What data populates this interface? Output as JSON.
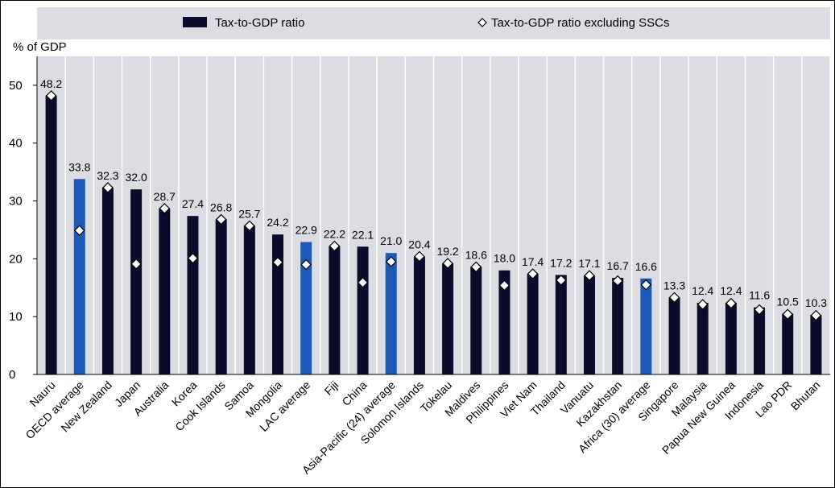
{
  "chart_data": {
    "type": "bar",
    "ylabel": "% of GDP",
    "ylim": [
      0,
      55
    ],
    "yticks": [
      0,
      10,
      20,
      30,
      40,
      50
    ],
    "grid": "vertical",
    "legend_position": "top",
    "categories": [
      "Nauru",
      "OECD average",
      "New Zealand",
      "Japan",
      "Australia",
      "Korea",
      "Cook Islands",
      "Samoa",
      "Mongolia",
      "LAC average",
      "Fiji",
      "China",
      "Asia-Pacific (24) average",
      "Solomon Islands",
      "Tokelau",
      "Maldives",
      "Philippines",
      "Viet Nam",
      "Thailand",
      "Vanuatu",
      "Kazakhstan",
      "Africa (30) average",
      "Singapore",
      "Malaysia",
      "Papua New Guinea",
      "Indonesia",
      "Lao PDR",
      "Bhutan"
    ],
    "series": [
      {
        "name": "Tax-to-GDP ratio",
        "values": [
          48.2,
          33.8,
          32.3,
          32.0,
          28.7,
          27.4,
          26.8,
          25.7,
          24.2,
          22.9,
          22.2,
          22.1,
          21.0,
          20.4,
          19.2,
          18.6,
          18.0,
          17.4,
          17.2,
          17.1,
          16.7,
          16.6,
          13.3,
          12.4,
          12.4,
          11.6,
          10.5,
          10.3
        ],
        "labels": [
          "48.2",
          "33.8",
          "32.3",
          "32.0",
          "28.7",
          "27.4",
          "26.8",
          "25.7",
          "24.2",
          "22.9",
          "22.2",
          "22.1",
          "21.0",
          "20.4",
          "19.2",
          "18.6",
          "18.0",
          "17.4",
          "17.2",
          "17.1",
          "16.7",
          "16.6",
          "13.3",
          "12.4",
          "12.4",
          "11.6",
          "10.5",
          "10.3"
        ],
        "highlight": [
          false,
          true,
          false,
          false,
          false,
          false,
          false,
          false,
          false,
          true,
          false,
          false,
          true,
          false,
          false,
          false,
          false,
          false,
          false,
          false,
          false,
          true,
          false,
          false,
          false,
          false,
          false,
          false
        ]
      },
      {
        "name": "Tax-to-GDP ratio excluding SSCs",
        "values": [
          48.2,
          24.9,
          32.3,
          19.1,
          28.7,
          20.1,
          26.8,
          25.7,
          19.4,
          19.0,
          22.2,
          15.9,
          19.5,
          20.4,
          19.2,
          18.6,
          15.4,
          17.4,
          16.3,
          17.1,
          16.2,
          15.5,
          13.3,
          12.1,
          12.3,
          11.2,
          10.4,
          10.2
        ]
      }
    ],
    "colors": {
      "bar": "#0b0c2b",
      "bar_highlight": "#1b5ab8",
      "diamond_fill": "#ffffff",
      "diamond_stroke": "#000000",
      "plot_bg": "#dbdde3",
      "grid": "#ffffff",
      "legend_bg": "#dbdde3"
    }
  }
}
